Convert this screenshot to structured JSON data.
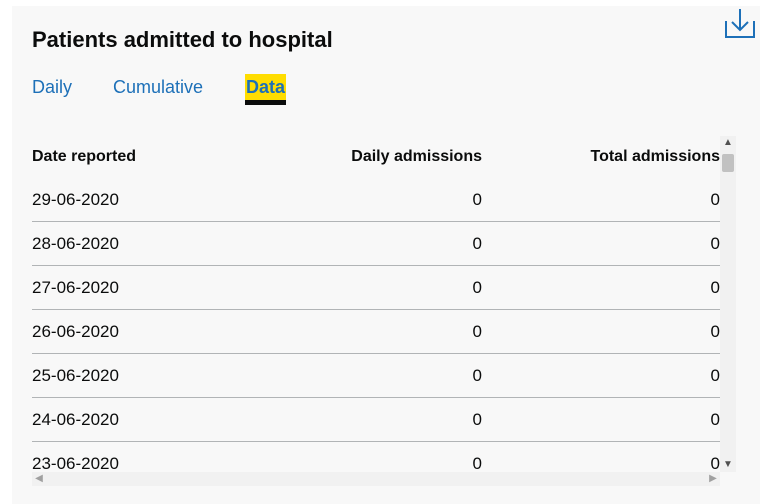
{
  "card": {
    "title": "Patients admitted to hospital",
    "download_icon": "download-icon"
  },
  "tabs": [
    {
      "label": "Daily",
      "active": false
    },
    {
      "label": "Cumulative",
      "active": false
    },
    {
      "label": "Data",
      "active": true
    }
  ],
  "table": {
    "headers": [
      "Date reported",
      "Daily admissions",
      "Total admissions"
    ],
    "rows": [
      [
        "29-06-2020",
        "0",
        "0"
      ],
      [
        "28-06-2020",
        "0",
        "0"
      ],
      [
        "27-06-2020",
        "0",
        "0"
      ],
      [
        "26-06-2020",
        "0",
        "0"
      ],
      [
        "25-06-2020",
        "0",
        "0"
      ],
      [
        "24-06-2020",
        "0",
        "0"
      ],
      [
        "23-06-2020",
        "0",
        "0"
      ]
    ]
  },
  "colors": {
    "link": "#1d70b8",
    "active_tab_bg": "#ffdd00",
    "text": "#0b0c0c",
    "card_bg": "#f8f8f8",
    "row_border": "#b1b4b6"
  }
}
